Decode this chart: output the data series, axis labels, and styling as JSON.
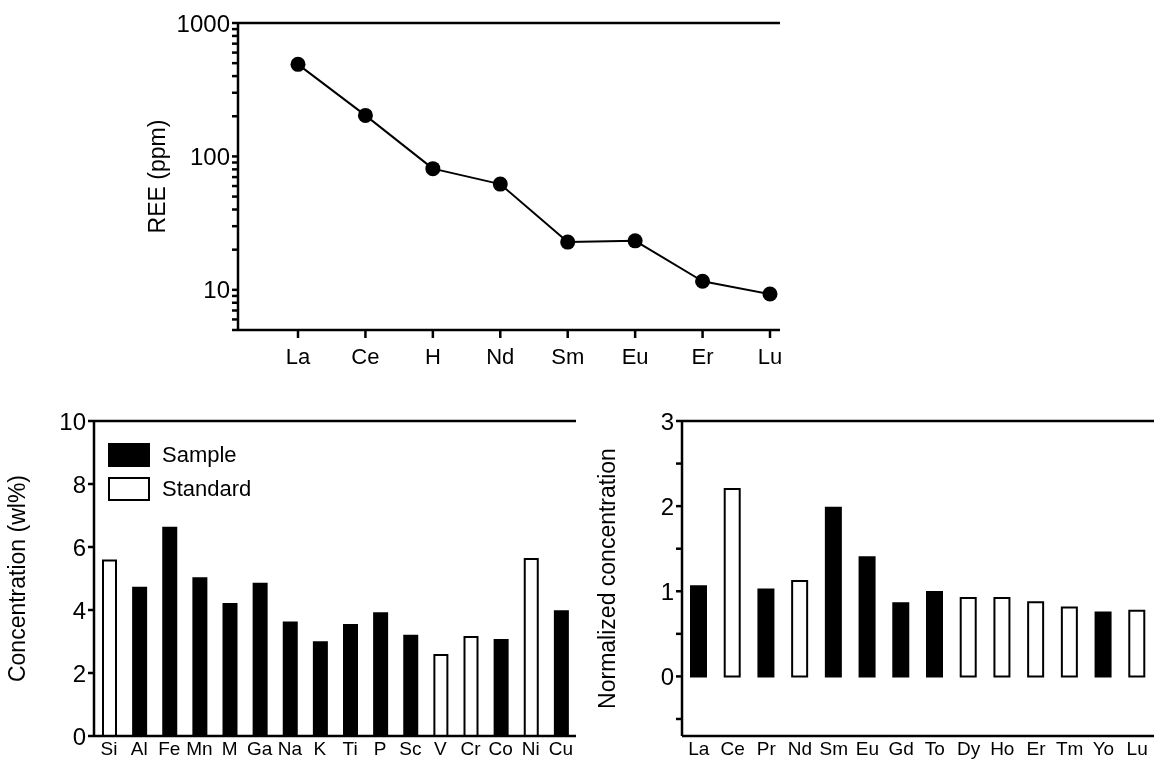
{
  "chart_data": [
    {
      "type": "line",
      "ylabel": "REE (ppm)",
      "categories": [
        "La",
        "Ce",
        "H",
        "Nd",
        "Sm",
        "Eu",
        "Er",
        "Lu"
      ],
      "series": [
        {
          "color": "#000000",
          "values": [
            490,
            203,
            81,
            62,
            22.8,
            23.3,
            11.6,
            9.3
          ]
        }
      ],
      "log": "y",
      "ylim": [
        5,
        1000
      ],
      "yticks": [
        {
          "value": 5,
          "label": null
        },
        {
          "value": 6,
          "label": null
        },
        {
          "value": 7,
          "label": null
        },
        {
          "value": 8,
          "label": null
        },
        {
          "value": 9,
          "label": null
        },
        10,
        {
          "value": 20,
          "label": null
        },
        {
          "value": 30,
          "label": null
        },
        {
          "value": 40,
          "label": null
        },
        {
          "value": 50,
          "label": null
        },
        {
          "value": 60,
          "label": null
        },
        {
          "value": 70,
          "label": null
        },
        {
          "value": 80,
          "label": null
        },
        {
          "value": 90,
          "label": null
        },
        100,
        {
          "value": 200,
          "label": null
        },
        {
          "value": 300,
          "label": null
        },
        {
          "value": 400,
          "label": null
        },
        {
          "value": 500,
          "label": null
        },
        {
          "value": 600,
          "label": null
        },
        {
          "value": 700,
          "label": null
        },
        {
          "value": 800,
          "label": null
        },
        {
          "value": 900,
          "label": null
        },
        1000
      ],
      "marker": "circle",
      "line_style": "solid",
      "grid": false,
      "legend": false
    },
    {
      "type": "bar",
      "ylabel": "Concentration (wl%)",
      "categories": [
        "Si",
        "Al",
        "Fe",
        "Mn",
        "M",
        "Ga",
        "Na",
        "K",
        "Ti",
        "P",
        "Sc",
        "V",
        "Cr",
        "Co",
        "Ni",
        "Cu"
      ],
      "stacked": true,
      "series": [
        {
          "name": "Sample",
          "color": "#000000",
          "values": [
            null,
            4.71,
            6.61,
            5.01,
            4.19,
            4.83,
            3.6,
            2.98,
            3.52,
            3.9,
            3.18,
            null,
            null,
            3.05,
            null,
            3.96
          ]
        },
        {
          "name": "Standard",
          "color": "#ffffff",
          "values": [
            5.57,
            null,
            null,
            null,
            null,
            null,
            null,
            null,
            null,
            null,
            null,
            2.57,
            3.14,
            null,
            5.62,
            null
          ]
        }
      ],
      "ylim": [
        0,
        10
      ],
      "yticks": [
        0,
        2,
        4,
        6,
        8,
        10
      ],
      "grid": false,
      "legend": "top left"
    },
    {
      "type": "bar",
      "ylabel": "Normalized concentration",
      "categories": [
        "La",
        "Ce",
        "Pr",
        "Nd",
        "Sm",
        "Eu",
        "Gd",
        "To",
        "Dy",
        "Ho",
        "Er",
        "Tm",
        "Yo",
        "Lu"
      ],
      "stacked": true,
      "series": [
        {
          "color": "#000000",
          "values": [
            1.06,
            null,
            1.02,
            null,
            1.98,
            1.4,
            0.86,
            0.99,
            null,
            null,
            null,
            null,
            0.75,
            null
          ]
        },
        {
          "color": "#ffffff",
          "values": [
            null,
            2.2,
            null,
            1.12,
            null,
            null,
            null,
            null,
            0.92,
            0.92,
            0.87,
            0.81,
            null,
            0.77
          ]
        }
      ],
      "ylim": [
        -0.7,
        3
      ],
      "yticks": [
        {
          "value": -0.5,
          "label": null
        },
        0,
        {
          "value": 0.5,
          "label": null
        },
        1,
        {
          "value": 1.5,
          "label": null
        },
        2,
        {
          "value": 2.5,
          "label": null
        },
        3
      ],
      "grid": false,
      "legend": false
    }
  ]
}
